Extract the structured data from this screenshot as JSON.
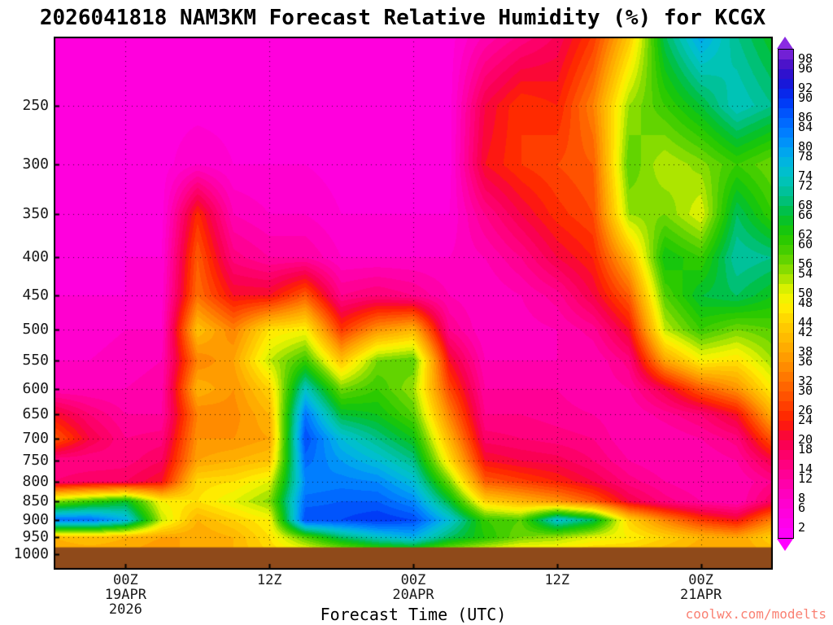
{
  "header": {
    "title": "2026041818 NAM3KM Forecast Relative Humidity (%) for KCGX"
  },
  "footer": {
    "xlabel": "Forecast Time (UTC)",
    "watermark": "coolwx.com/modelts"
  },
  "chart_data": {
    "type": "heatmap",
    "title": "2026041818 NAM3KM Forecast Relative Humidity (%) for KCGX",
    "xlabel": "Forecast Time (UTC)",
    "ylabel": "",
    "units": "percent relative humidity",
    "x_unit": "forecast hour from 18Z 18 Apr 2026",
    "x_hours": [
      0,
      3,
      6,
      9,
      12,
      15,
      18,
      21,
      24,
      27,
      30,
      33,
      36,
      39,
      42,
      45,
      48,
      51,
      54,
      57,
      60
    ],
    "x_ticks": [
      {
        "hour": 6,
        "lines": [
          "00Z",
          "19APR",
          "2026"
        ]
      },
      {
        "hour": 18,
        "lines": [
          "12Z"
        ]
      },
      {
        "hour": 30,
        "lines": [
          "00Z",
          "20APR"
        ]
      },
      {
        "hour": 42,
        "lines": [
          "12Z"
        ]
      },
      {
        "hour": 54,
        "lines": [
          "00Z",
          "21APR"
        ]
      }
    ],
    "pressure_levels_hpa": [
      200,
      250,
      300,
      350,
      400,
      450,
      500,
      550,
      600,
      650,
      700,
      750,
      800,
      850,
      900,
      950,
      1000
    ],
    "y_tick_labels": [
      250,
      300,
      350,
      400,
      450,
      500,
      550,
      600,
      650,
      700,
      750,
      800,
      850,
      900,
      950,
      1000
    ],
    "y_range_hpa": [
      202,
      1050
    ],
    "grid_orientation": "rows are times (x_hours), columns are pressure_levels_hpa",
    "rh_percent_grid": [
      [
        5,
        5,
        5,
        5,
        5,
        6,
        7,
        8,
        10,
        22,
        30,
        14,
        16,
        55,
        85,
        40,
        38
      ],
      [
        5,
        5,
        5,
        5,
        5,
        6,
        7,
        8,
        10,
        16,
        20,
        14,
        18,
        60,
        85,
        42,
        38
      ],
      [
        5,
        5,
        5,
        5,
        6,
        6,
        8,
        9,
        10,
        12,
        14,
        15,
        18,
        65,
        78,
        40,
        38
      ],
      [
        5,
        5,
        5,
        5,
        6,
        7,
        8,
        10,
        11,
        12,
        15,
        18,
        22,
        48,
        52,
        38,
        36
      ],
      [
        5,
        5,
        8,
        25,
        30,
        32,
        42,
        34,
        40,
        34,
        36,
        38,
        45,
        46,
        40,
        38,
        40
      ],
      [
        5,
        5,
        6,
        10,
        15,
        22,
        34,
        38,
        36,
        35,
        36,
        40,
        46,
        50,
        44,
        40,
        40
      ],
      [
        5,
        5,
        6,
        8,
        12,
        22,
        46,
        52,
        44,
        40,
        38,
        42,
        50,
        55,
        48,
        46,
        44
      ],
      [
        5,
        5,
        6,
        8,
        12,
        30,
        48,
        60,
        74,
        84,
        88,
        85,
        82,
        85,
        88,
        58,
        46
      ],
      [
        5,
        5,
        5,
        6,
        8,
        14,
        26,
        42,
        56,
        66,
        76,
        80,
        83,
        86,
        88,
        68,
        50
      ],
      [
        5,
        5,
        5,
        6,
        8,
        16,
        36,
        56,
        60,
        64,
        70,
        76,
        82,
        86,
        90,
        74,
        54
      ],
      [
        5,
        5,
        5,
        6,
        8,
        14,
        40,
        58,
        54,
        58,
        64,
        70,
        76,
        82,
        88,
        78,
        55
      ],
      [
        5,
        5,
        5,
        6,
        8,
        10,
        14,
        22,
        28,
        34,
        40,
        46,
        56,
        66,
        76,
        68,
        50
      ],
      [
        10,
        20,
        22,
        14,
        10,
        8,
        8,
        10,
        12,
        14,
        17,
        22,
        30,
        44,
        60,
        62,
        46
      ],
      [
        14,
        26,
        26,
        20,
        14,
        10,
        9,
        10,
        12,
        14,
        16,
        20,
        27,
        40,
        58,
        56,
        44
      ],
      [
        18,
        24,
        28,
        25,
        20,
        13,
        10,
        10,
        12,
        13,
        15,
        19,
        24,
        36,
        76,
        54,
        44
      ],
      [
        26,
        34,
        30,
        28,
        24,
        20,
        13,
        10,
        10,
        12,
        14,
        16,
        20,
        30,
        68,
        50,
        42
      ],
      [
        42,
        54,
        58,
        54,
        40,
        30,
        22,
        15,
        12,
        10,
        10,
        12,
        15,
        20,
        44,
        48,
        42
      ],
      [
        68,
        60,
        52,
        56,
        64,
        58,
        52,
        38,
        20,
        13,
        10,
        10,
        12,
        15,
        34,
        44,
        40
      ],
      [
        80,
        66,
        55,
        50,
        60,
        66,
        60,
        48,
        30,
        16,
        12,
        10,
        10,
        12,
        26,
        40,
        38
      ],
      [
        70,
        74,
        60,
        68,
        72,
        68,
        56,
        46,
        36,
        22,
        15,
        12,
        10,
        10,
        22,
        38,
        38
      ],
      [
        64,
        70,
        56,
        60,
        70,
        64,
        58,
        54,
        48,
        40,
        30,
        20,
        14,
        18,
        34,
        44,
        40
      ]
    ],
    "terrain": {
      "top_hpa": 980,
      "color": "#8F4A1A"
    },
    "gridlines": {
      "style": "dotted",
      "x_at_hours": [
        6,
        18,
        30,
        42,
        54
      ],
      "y_at_hpa": [
        250,
        300,
        350,
        400,
        450,
        500,
        550,
        600,
        650,
        700,
        750,
        800,
        850,
        900,
        950
      ]
    },
    "colormap_stops": [
      [
        0,
        "#FF00FF"
      ],
      [
        8,
        "#FF00C8"
      ],
      [
        12,
        "#FF00A0"
      ],
      [
        16,
        "#FF0074"
      ],
      [
        20,
        "#F80048"
      ],
      [
        24,
        "#FF2000"
      ],
      [
        30,
        "#FF5C00"
      ],
      [
        36,
        "#FF9400"
      ],
      [
        40,
        "#FFB400"
      ],
      [
        44,
        "#FFD000"
      ],
      [
        48,
        "#FFF400"
      ],
      [
        51,
        "#D8F000"
      ],
      [
        54,
        "#98E000"
      ],
      [
        58,
        "#50D000"
      ],
      [
        62,
        "#1EC800"
      ],
      [
        66,
        "#00C034"
      ],
      [
        70,
        "#00C08C"
      ],
      [
        74,
        "#00C4C4"
      ],
      [
        78,
        "#00B0E8"
      ],
      [
        82,
        "#0088FF"
      ],
      [
        86,
        "#0060FF"
      ],
      [
        90,
        "#0030F4"
      ],
      [
        94,
        "#2010D0"
      ],
      [
        98,
        "#5A14C8"
      ],
      [
        100,
        "#8A2BE2"
      ]
    ],
    "colorbar": {
      "min": 0,
      "max": 100,
      "segment_step": 2,
      "labels": [
        98,
        96,
        92,
        90,
        86,
        84,
        80,
        78,
        74,
        72,
        68,
        66,
        62,
        60,
        56,
        54,
        50,
        48,
        44,
        42,
        38,
        36,
        32,
        30,
        26,
        24,
        20,
        18,
        14,
        12,
        8,
        6,
        2
      ]
    }
  }
}
